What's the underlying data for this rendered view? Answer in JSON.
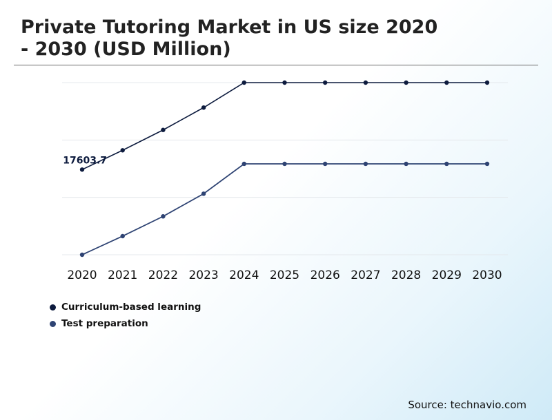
{
  "header": {
    "title_line1": "Private Tutoring Market in US size 2020",
    "title_line2": "- 2030 (USD Million)"
  },
  "source": "Source: technavio.com",
  "chart_data": {
    "type": "line",
    "title": "Private Tutoring Market in US size 2020 - 2030 (USD Million)",
    "categories": [
      "2020",
      "2021",
      "2022",
      "2023",
      "2024",
      "2025",
      "2026",
      "2027",
      "2028",
      "2029",
      "2030"
    ],
    "series": [
      {
        "name": "Curriculum-based learning",
        "color": "#0d1b3e",
        "values": [
          17603.7,
          18940,
          20350,
          21900,
          23630,
          23630,
          23630,
          23630,
          23630,
          23630,
          23630
        ]
      },
      {
        "name": "Test preparation",
        "color": "#2e4373",
        "values": [
          11700,
          12990,
          14360,
          15930,
          18000,
          18000,
          18000,
          18000,
          18000,
          18000,
          18000
        ]
      }
    ],
    "annotations": [
      {
        "series": 0,
        "index": 0,
        "text": "17603.7"
      }
    ],
    "ylim": [
      11700,
      23630
    ],
    "grid": true,
    "legend": "bottom-left"
  }
}
